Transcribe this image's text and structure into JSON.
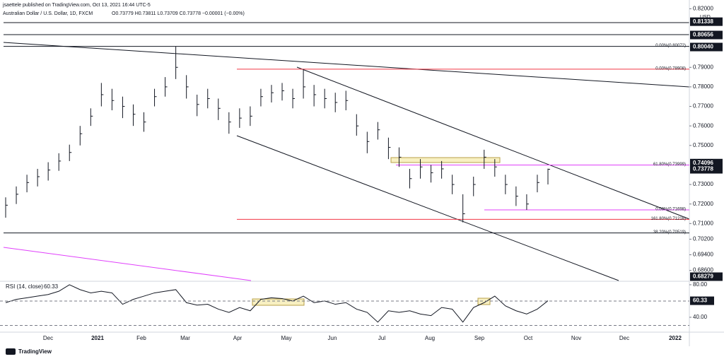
{
  "header": {
    "author": "jsaettele published on TradingView.com, Oct 13, 2021 16:44 UTC-5",
    "symbol": "Australian Dollar / U.S. Dollar, 1D, FXCM",
    "ohlc": "O0.73779 H0.73811 L0.73709 C0.73778 −0.00001 (−0.00%)",
    "currency": "USD",
    "brand": "TradingView"
  },
  "chart_data": {
    "type": "ohlc",
    "color": "#131722",
    "high": [
      0.7234,
      0.729,
      0.735,
      0.738,
      0.7414,
      0.746,
      0.7504,
      0.76,
      0.769,
      0.782,
      0.779,
      0.775,
      0.771,
      0.767,
      0.779,
      0.785,
      0.8007,
      0.786,
      0.776,
      0.779,
      0.774,
      0.767,
      0.769,
      0.77,
      0.779,
      0.781,
      0.782,
      0.779,
      0.7891,
      0.781,
      0.779,
      0.777,
      0.778,
      0.766,
      0.757,
      0.762,
      0.754,
      0.749,
      0.738,
      0.743,
      0.74,
      0.742,
      0.735,
      0.725,
      0.734,
      0.7478,
      0.743,
      0.735,
      0.729,
      0.725,
      0.735,
      0.7381
    ],
    "low": [
      0.713,
      0.72,
      0.726,
      0.729,
      0.732,
      0.737,
      0.742,
      0.75,
      0.76,
      0.77,
      0.768,
      0.764,
      0.76,
      0.757,
      0.77,
      0.775,
      0.784,
      0.774,
      0.765,
      0.769,
      0.763,
      0.756,
      0.759,
      0.76,
      0.77,
      0.772,
      0.773,
      0.769,
      0.774,
      0.77,
      0.769,
      0.767,
      0.768,
      0.755,
      0.746,
      0.753,
      0.743,
      0.739,
      0.728,
      0.733,
      0.731,
      0.733,
      0.725,
      0.7106,
      0.724,
      0.738,
      0.734,
      0.725,
      0.719,
      0.717,
      0.726,
      0.73
    ],
    "close": [
      0.7194,
      0.725,
      0.731,
      0.734,
      0.7374,
      0.742,
      0.7464,
      0.756,
      0.765,
      0.776,
      0.773,
      0.77,
      0.766,
      0.762,
      0.775,
      0.78,
      0.79,
      0.78,
      0.771,
      0.774,
      0.769,
      0.762,
      0.764,
      0.765,
      0.775,
      0.777,
      0.778,
      0.774,
      0.78,
      0.776,
      0.774,
      0.772,
      0.773,
      0.76,
      0.752,
      0.758,
      0.749,
      0.744,
      0.733,
      0.739,
      0.736,
      0.738,
      0.73,
      0.715,
      0.73,
      0.744,
      0.739,
      0.73,
      0.724,
      0.72,
      0.731,
      0.7378
    ],
    "ylim": [
      0.6808,
      0.8205
    ],
    "yticks": [
      {
        "value": 0.686,
        "label": "0.68600"
      },
      {
        "value": 0.694,
        "label": "0.69400"
      },
      {
        "value": 0.702,
        "label": "0.70200"
      },
      {
        "value": 0.71,
        "label": "0.71000"
      },
      {
        "value": 0.72,
        "label": "0.72000"
      },
      {
        "value": 0.73,
        "label": "0.73000"
      },
      {
        "value": 0.75,
        "label": "0.75000"
      },
      {
        "value": 0.76,
        "label": "0.76000"
      },
      {
        "value": 0.77,
        "label": "0.77000"
      },
      {
        "value": 0.78,
        "label": "0.78000"
      },
      {
        "value": 0.79,
        "label": "0.79000"
      },
      {
        "value": 0.82,
        "label": "0.82000"
      }
    ],
    "price_labels": [
      0.81338,
      0.80656,
      {
        "value": 0.8004,
        "label": "0.80040"
      },
      0.74096,
      0.73778,
      0.68279
    ],
    "levels": [
      {
        "value": 0.80072,
        "label": "0.00%(0.80072)",
        "color": "#131722"
      },
      {
        "value": 0.78908,
        "label": "0.00%(0.78908)",
        "color": "#f23645"
      },
      {
        "value": 0.73999,
        "label": "61.80%(0.73999)",
        "color": "#e040fb"
      },
      {
        "value": 0.71698,
        "label": "0.00%(0.71698)",
        "color": "#e040fb"
      },
      {
        "value": 0.71216,
        "label": "161.80%(0.71216)",
        "color": "#f23645"
      },
      {
        "value": 0.70519,
        "label": "38.20%(0.70519)",
        "color": "#131722"
      }
    ],
    "x_labels": [
      "Dec",
      "2021",
      "Feb",
      "Mar",
      "Apr",
      "May",
      "Jun",
      "Jul",
      "Aug",
      "Sep",
      "Oct",
      "Nov",
      "Dec",
      "2022"
    ],
    "rsi": {
      "title": "RSI (14, close)",
      "color": "#131722",
      "values": [
        58,
        62,
        64,
        66,
        68,
        72,
        80,
        74,
        70,
        72,
        70,
        56,
        62,
        66,
        70,
        72,
        74,
        58,
        55,
        56,
        50,
        46,
        52,
        48,
        62,
        64,
        63,
        60,
        66,
        58,
        60,
        56,
        58,
        50,
        46,
        34,
        48,
        46,
        48,
        44,
        42,
        52,
        50,
        34,
        52,
        58,
        66,
        54,
        48,
        44,
        50,
        60.33
      ],
      "ylim": [
        21.7,
        84.3
      ],
      "yticks": [
        {
          "value": 80,
          "label": "80.00"
        },
        {
          "value": 40,
          "label": "40.00"
        }
      ],
      "bands": [
        30,
        60
      ],
      "last": 60.33
    }
  }
}
